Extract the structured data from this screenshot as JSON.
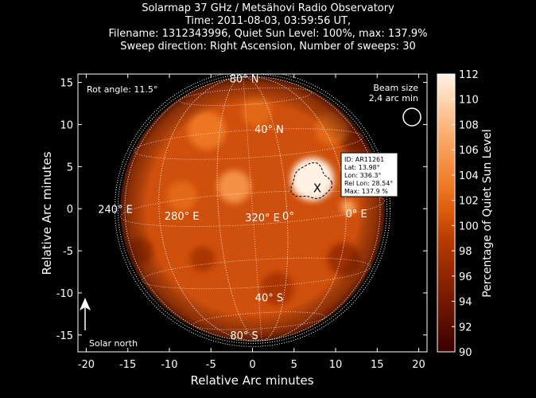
{
  "title_lines": [
    "Solarmap 37 GHz / Metsähovi Radio Observatory",
    "Time: 2011-08-03, 03:59:56 UT,",
    "Filename: 1312343996, Quiet Sun Level: 100%, max: 137.9%",
    "Sweep direction: Right Ascension, Number of sweeps: 30"
  ],
  "chart_data": {
    "type": "heatmap",
    "xlabel": "Relative Arc minutes",
    "ylabel": "Relative Arc minutes",
    "xlim": [
      -21,
      21
    ],
    "ylim": [
      -17,
      16
    ],
    "xticks": [
      -20,
      -15,
      -10,
      -5,
      0,
      5,
      10,
      15,
      20
    ],
    "yticks": [
      -15,
      -10,
      -5,
      0,
      5,
      10,
      15
    ],
    "colorbar": {
      "label": "Percentage of Quiet Sun Level",
      "range": [
        90,
        112
      ],
      "ticks": [
        90,
        92,
        94,
        96,
        98,
        100,
        102,
        104,
        106,
        108,
        110,
        112
      ]
    },
    "sun": {
      "center": [
        0,
        0
      ],
      "radius": 15.8,
      "rotation_angle_deg": 11.5
    },
    "grid_labels": [
      {
        "text": "80° N",
        "x": -1,
        "y": 15
      },
      {
        "text": "40° N",
        "x": 2,
        "y": 9
      },
      {
        "text": "240° E",
        "x": -16.5,
        "y": -0.5
      },
      {
        "text": "280° E",
        "x": -8.5,
        "y": -1.3
      },
      {
        "text": "320° E",
        "x": 1.2,
        "y": -1.5
      },
      {
        "text": "0°",
        "x": 4.3,
        "y": -1.3
      },
      {
        "text": "0° E",
        "x": 12.5,
        "y": -1
      },
      {
        "text": "40° S",
        "x": 2,
        "y": -11
      },
      {
        "text": "80° S",
        "x": -1,
        "y": -15.5
      }
    ],
    "active_region": {
      "marker": "X",
      "x": 7.8,
      "y": 2.4,
      "info": [
        "ID: AR11261",
        "Lat: 13.98°",
        "Lon: 336.3°",
        "Rel Lon: 28.54°",
        "Max: 137.9 %"
      ]
    },
    "brightenings": [
      {
        "x": 7.2,
        "y": 3.5,
        "level": 112,
        "radius": 2.6
      },
      {
        "x": -2.2,
        "y": 2.6,
        "level": 105,
        "radius": 2.0
      },
      {
        "x": 11.5,
        "y": 0.2,
        "level": 106,
        "radius": 0.9
      },
      {
        "x": -5.5,
        "y": 9.3,
        "level": 103,
        "radius": 2.3
      },
      {
        "x": 9.5,
        "y": 9.5,
        "level": 102,
        "radius": 2.0
      },
      {
        "x": -8.5,
        "y": 1.5,
        "level": 102,
        "radius": 1.8
      },
      {
        "x": 0.5,
        "y": 11.5,
        "level": 102,
        "radius": 1.8
      }
    ],
    "dark_patches": [
      {
        "x": 12.5,
        "y": 8.5,
        "level": 97,
        "radius": 2.0
      },
      {
        "x": 11,
        "y": -6,
        "level": 97,
        "radius": 2.0
      },
      {
        "x": 3,
        "y": -9.5,
        "level": 98,
        "radius": 2.0
      },
      {
        "x": -13.5,
        "y": -5,
        "level": 98,
        "radius": 1.6
      },
      {
        "x": -6,
        "y": -6,
        "level": 98,
        "radius": 1.5
      }
    ]
  },
  "annotations": {
    "rot_angle": "Rot angle: 11.5°",
    "beam_size_line1": "Beam size",
    "beam_size_line2": "2,4 arc min",
    "solar_north": "Solar north"
  }
}
